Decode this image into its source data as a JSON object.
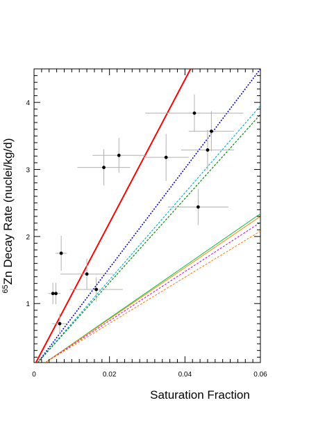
{
  "chart_data": {
    "type": "scatter",
    "title": "",
    "xlabel": "Saturation Fraction",
    "ylabel_sup": "65",
    "ylabel_text": "Zn Decay Rate (nuclei/kg/d)",
    "xlim": [
      0,
      0.06
    ],
    "ylim": [
      0.12,
      4.5
    ],
    "x_ticks": [
      0,
      0.02,
      0.04,
      0.06
    ],
    "x_tick_labels": [
      "0",
      "0.02",
      "0.04",
      "0.06"
    ],
    "y_ticks": [
      1,
      2,
      3,
      4
    ],
    "y_tick_labels": [
      "1",
      "2",
      "3",
      "4"
    ],
    "grid": false,
    "points": [
      {
        "x": 0.005,
        "y": 1.15,
        "xerr": 0.0012,
        "yerr": 0.16
      },
      {
        "x": 0.0058,
        "y": 1.15,
        "xerr": 0.0012,
        "yerr": 0.16
      },
      {
        "x": 0.0068,
        "y": 0.7,
        "xerr": 0.002,
        "yerr": 0.15
      },
      {
        "x": 0.0072,
        "y": 1.75,
        "xerr": 0.0015,
        "yerr": 0.26
      },
      {
        "x": 0.014,
        "y": 1.44,
        "xerr": 0.007,
        "yerr": 0.23
      },
      {
        "x": 0.0165,
        "y": 1.21,
        "xerr": 0.007,
        "yerr": 0.18
      },
      {
        "x": 0.0185,
        "y": 3.03,
        "xerr": 0.007,
        "yerr": 0.27
      },
      {
        "x": 0.0225,
        "y": 3.21,
        "xerr": 0.007,
        "yerr": 0.26
      },
      {
        "x": 0.035,
        "y": 3.18,
        "xerr": 0.006,
        "yerr": 0.35
      },
      {
        "x": 0.0425,
        "y": 3.84,
        "xerr": 0.013,
        "yerr": 0.28
      },
      {
        "x": 0.0435,
        "y": 2.44,
        "xerr": 0.008,
        "yerr": 0.27
      },
      {
        "x": 0.046,
        "y": 3.29,
        "xerr": 0.007,
        "yerr": 0.3
      },
      {
        "x": 0.047,
        "y": 3.57,
        "xerr": 0.006,
        "yerr": 0.3
      }
    ],
    "lines": [
      {
        "color": "#ff0000",
        "style": "solid",
        "width": 2.0,
        "x": [
          0.0005,
          0.0415
        ],
        "y": [
          0.12,
          4.5
        ]
      },
      {
        "color": "#0000cc",
        "style": "dotted",
        "width": 1.6,
        "x": [
          0.001,
          0.06
        ],
        "y": [
          0.12,
          4.5
        ]
      },
      {
        "color": "#00b0e0",
        "style": "dashed",
        "width": 1.2,
        "x": [
          0.001,
          0.06
        ],
        "y": [
          0.12,
          3.95
        ]
      },
      {
        "color": "#008800",
        "style": "dashed",
        "width": 1.2,
        "x": [
          0.001,
          0.06
        ],
        "y": [
          0.12,
          3.82
        ]
      },
      {
        "color": "#00bb44",
        "style": "solid",
        "width": 1.0,
        "x": [
          0.003,
          0.06
        ],
        "y": [
          0.12,
          2.34
        ]
      },
      {
        "color": "#ff8800",
        "style": "solid",
        "width": 1.0,
        "x": [
          0.003,
          0.06
        ],
        "y": [
          0.12,
          2.3
        ]
      },
      {
        "color": "#cc00cc",
        "style": "dashed",
        "width": 1.0,
        "x": [
          0.003,
          0.06
        ],
        "y": [
          0.12,
          2.21
        ]
      },
      {
        "color": "#ff7700",
        "style": "dashed",
        "width": 1.0,
        "x": [
          0.003,
          0.06
        ],
        "y": [
          0.12,
          2.08
        ]
      }
    ]
  }
}
